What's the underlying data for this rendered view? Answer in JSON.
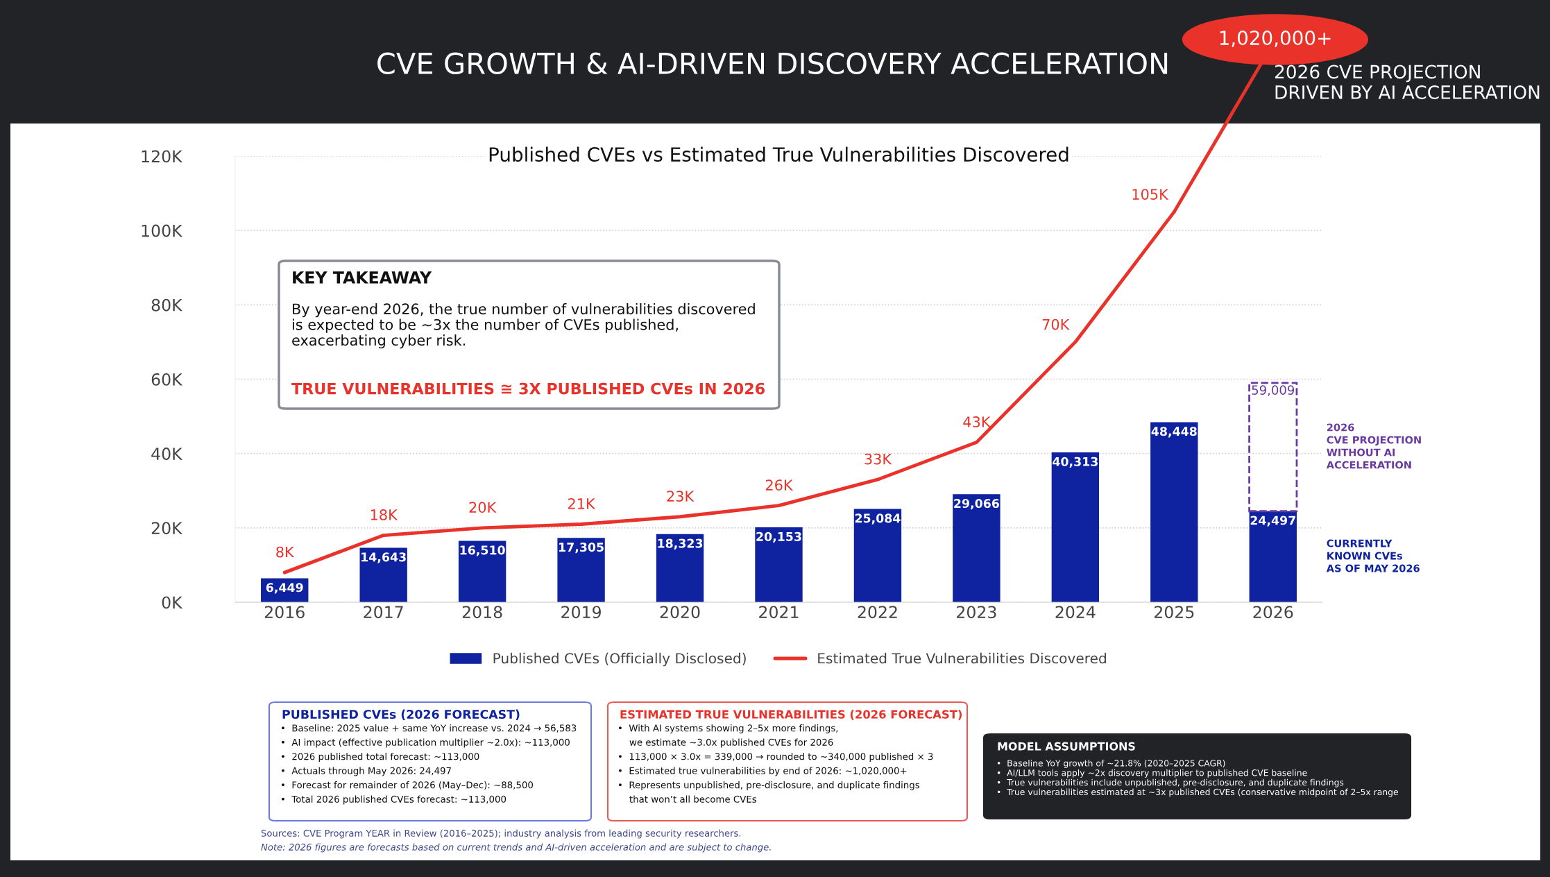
{
  "chart_data": {
    "type": "bar",
    "title": "CVE GROWTH & AI-DRIVEN DISCOVERY ACCELERATION",
    "subtitle": "Published CVEs vs Estimated True Vulnerabilities Discovered",
    "categories": [
      "2016",
      "2017",
      "2018",
      "2019",
      "2020",
      "2021",
      "2022",
      "2023",
      "2024",
      "2025",
      "2026"
    ],
    "stacked": true,
    "series": [
      {
        "name": "Published CVEs (Officially Disclosed)",
        "color": "#0f23a0",
        "values": [
          6449,
          14643,
          16510,
          17305,
          18323,
          20153,
          25084,
          29066,
          40313,
          48448,
          24497
        ],
        "value_labels": [
          "6,449",
          "14,643",
          "16,510",
          "17,305",
          "18,323",
          "20,153",
          "25,084",
          "29,066",
          "40,313",
          "48,448",
          "24,497"
        ]
      },
      {
        "color": "#6a3aa0",
        "line_style": "dashed",
        "values": [
          null,
          null,
          null,
          null,
          null,
          null,
          null,
          null,
          null,
          null,
          34512
        ]
      },
      {
        "name": "Estimated True Vulnerabilities Discovered",
        "type": "line",
        "color": "#e8322a",
        "values": [
          8000,
          18000,
          20000,
          21000,
          23000,
          26000,
          33000,
          43000,
          70000,
          105000,
          null
        ],
        "value_labels": [
          "8K",
          "18K",
          "20K",
          "21K",
          "23K",
          "26K",
          "33K",
          "43K",
          "70K",
          "105K",
          null
        ]
      }
    ],
    "totals": [
      null,
      null,
      null,
      null,
      null,
      null,
      null,
      null,
      null,
      null,
      "59,009"
    ],
    "ylim": [
      0,
      120000
    ],
    "yticks": [
      {
        "value": 0,
        "label": "0K"
      },
      {
        "value": 20000,
        "label": "20K"
      },
      {
        "value": 40000,
        "label": "40K"
      },
      {
        "value": 60000,
        "label": "60K"
      },
      {
        "value": 80000,
        "label": "80K"
      },
      {
        "value": 100000,
        "label": "100K"
      },
      {
        "value": 120000,
        "label": "120K"
      }
    ],
    "grid": "y",
    "legend": "bottom",
    "marker": "none",
    "annotations": [
      {
        "text": "1,020,000+",
        "x": "2025",
        "y": 105000
      },
      "2026 CVE PROJECTION\nDRIVEN BY AI ACCELERATION",
      "2026\nCVE PROJECTION\nWITHOUT AI\nACCELERATION",
      "CURRENTLY\nKNOWN CVEs\nAS OF MAY 2026",
      "KEY TAKEAWAY",
      "By year-end 2026, the true number of vulnerabilities discovered\nis expected to be ~3x the number of CVEs published,\nexacerbating cyber risk.",
      "TRUE VULNERABILITIES ≅ 3X PUBLISHED CVEs IN 2026",
      "PUBLISHED CVEs (2026 FORECAST)",
      "•  Baseline: 2025 value + same YoY increase vs. 2024 → 56,583\n•  AI impact (effective publication multiplier ~2.0x): ~113,000\n•  2026 published total forecast: ~113,000\n•  Actuals through May 2026: 24,497\n•  Forecast for remainder of 2026 (May–Dec): ~88,500\n•  Total 2026 published CVEs forecast: ~113,000",
      "ESTIMATED TRUE VULNERABILITIES (2026 FORECAST)",
      "•  With AI systems showing 2–5x more findings,\n    we estimate ~3.0x published CVEs for 2026\n•  113,000 × 3.0x = 339,000 → rounded to ~340,000 published × 3\n•  Estimated true vulnerabilities by end of 2026: ~1,020,000+\n•  Represents unpublished, pre-disclosure, and duplicate findings\n    that won’t all become CVEs",
      "MODEL ASSUMPTIONS",
      "•  Baseline YoY growth of ~21.8% (2020–2025 CAGR)\n•  AI/LLM tools apply ~2x discovery multiplier to published CVE baseline\n•  True vulnerabilities include unpublished, pre-disclosure, and duplicate findings\n•  True vulnerabilities estimated at ~3x published CVEs (conservative midpoint of 2–5x range",
      "Sources: CVE Program YEAR in Review (2016–2025); industry analysis from leading security researchers.",
      "Note: 2026 figures are forecasts based on current trends and AI-driven acceleration and are subject to change."
    ]
  }
}
